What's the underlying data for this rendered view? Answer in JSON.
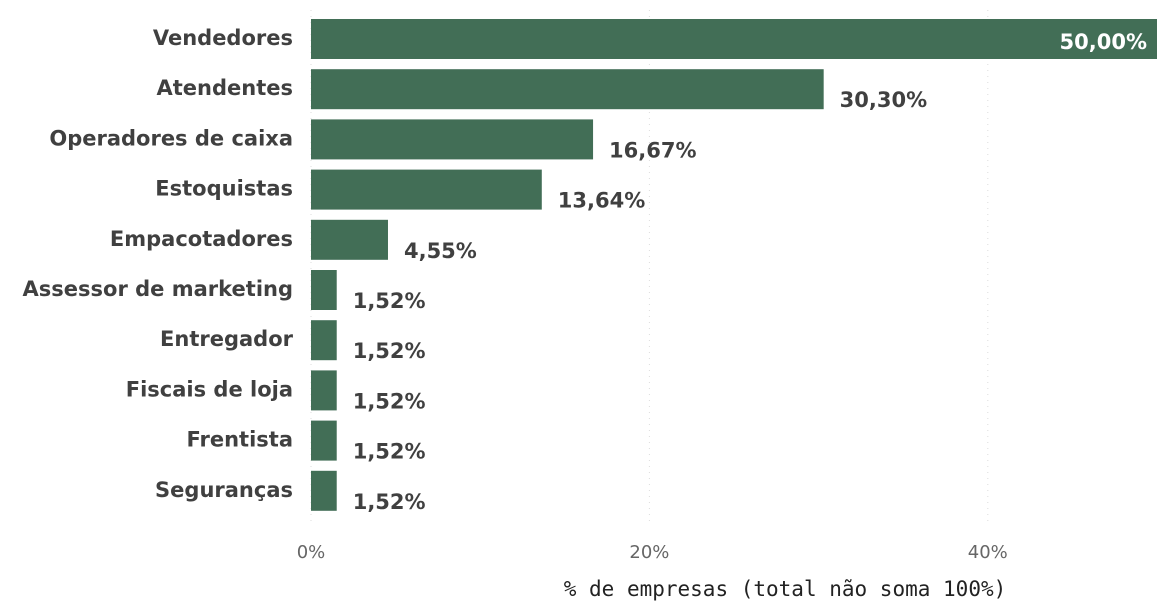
{
  "chart_data": {
    "type": "bar",
    "orientation": "horizontal",
    "categories": [
      "Vendedores",
      "Atendentes",
      "Operadores de caixa",
      "Estoquistas",
      "Empacotadores",
      "Assessor de marketing",
      "Entregador",
      "Fiscais de loja",
      "Frentista",
      "Seguranças"
    ],
    "values": [
      50,
      30.3,
      16.67,
      13.64,
      4.55,
      1.52,
      1.52,
      1.52,
      1.52,
      1.52
    ],
    "value_labels": [
      "50,00%",
      "30,30%",
      "16,67%",
      "13,64%",
      "4,55%",
      "1,52%",
      "1,52%",
      "1,52%",
      "1,52%",
      "1,52%"
    ],
    "color": "#426e56",
    "xlabel": "% de empresas (total não soma 100%)",
    "xlim": [
      0,
      50
    ],
    "xticks": [
      {
        "value": 0,
        "label": "0%"
      },
      {
        "value": 20,
        "label": "20%"
      },
      {
        "value": 40,
        "label": "40%"
      }
    ],
    "grid": true
  }
}
